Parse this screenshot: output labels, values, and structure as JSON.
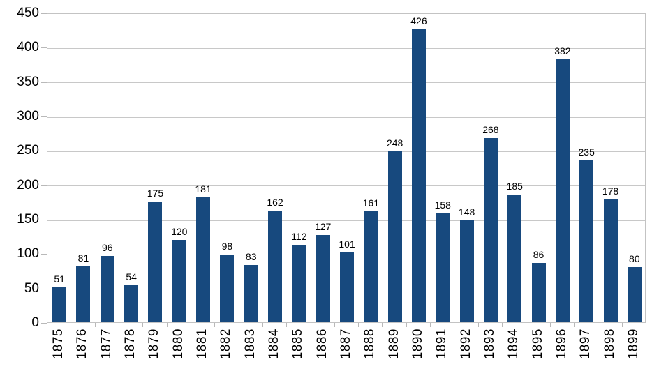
{
  "chart_data": {
    "type": "bar",
    "title": "",
    "xlabel": "",
    "ylabel": "",
    "categories": [
      "1875",
      "1876",
      "1877",
      "1878",
      "1879",
      "1880",
      "1881",
      "1882",
      "1883",
      "1884",
      "1885",
      "1886",
      "1887",
      "1888",
      "1889",
      "1890",
      "1891",
      "1892",
      "1893",
      "1894",
      "1895",
      "1896",
      "1897",
      "1898",
      "1899"
    ],
    "values": [
      51,
      81,
      96,
      54,
      175,
      120,
      181,
      98,
      83,
      162,
      112,
      127,
      101,
      161,
      248,
      426,
      158,
      148,
      268,
      185,
      86,
      382,
      235,
      178,
      80
    ],
    "ylim": [
      0,
      450
    ],
    "yticks": [
      0,
      50,
      100,
      150,
      200,
      250,
      300,
      350,
      400,
      450
    ],
    "grid": true,
    "legend": false,
    "data_labels": true,
    "colors": {
      "bar_fill": "#17497E",
      "gridline": "#C8C8C8",
      "axis_line": "#B9B9B9",
      "text": "#000000",
      "background": "#FFFFFF"
    }
  }
}
